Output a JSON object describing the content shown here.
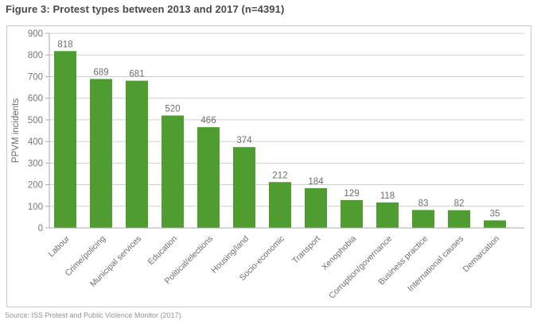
{
  "figure": {
    "title": "Figure 3: Protest types between 2013 and 2017 (n=4391)",
    "source": "Source: ISS Protest and Public Violence Monitor (2017)."
  },
  "chart_data": {
    "type": "bar",
    "title": "Figure 3: Protest types between 2013 and 2017 (n=4391)",
    "categories": [
      "Labour",
      "Crime/policing",
      "Municipal services",
      "Education",
      "Political/elections",
      "Housing/land",
      "Socio-economic",
      "Transport",
      "Xenophobia",
      "Corruption/governance",
      "Business practice",
      "International causes",
      "Demarcation"
    ],
    "values": [
      818,
      689,
      681,
      520,
      466,
      374,
      212,
      184,
      129,
      118,
      83,
      82,
      35
    ],
    "xlabel": "",
    "ylabel": "PPVM incidents",
    "ylim": [
      0,
      900
    ],
    "ytick_interval": 100,
    "grid": true,
    "legend": "none",
    "bar_color": "#4f9d30",
    "grid_color": "#cdcfce",
    "axis_color": "#a9abad",
    "tick_label_color": "#77787b",
    "value_label_color": "#6d6e71",
    "category_label_color": "#6d6e71",
    "total_n": 4391
  }
}
